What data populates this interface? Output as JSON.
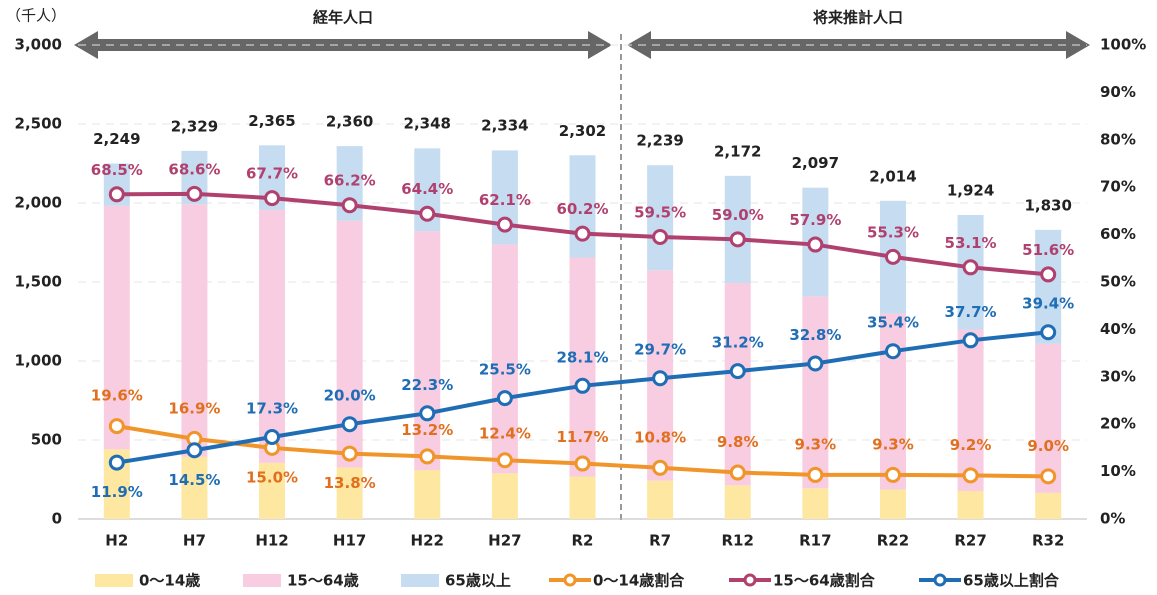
{
  "chart_data": {
    "type": "bar-line",
    "y_label": "（千人）",
    "annotations": [
      "経年人口",
      "将来推計人口"
    ],
    "categories": [
      "H2",
      "H7",
      "H12",
      "H17",
      "H22",
      "H27",
      "R2",
      "R7",
      "R12",
      "R17",
      "R22",
      "R27",
      "R32"
    ],
    "series": [
      {
        "name": "0～14歳",
        "type": "bar",
        "color": "#fde7a1",
        "values": [
          441,
          394,
          355,
          326,
          310,
          289,
          269,
          242,
          213,
          195,
          187,
          177,
          165
        ]
      },
      {
        "name": "15～64歳",
        "type": "bar",
        "color": "#f9cde1",
        "values": [
          1541,
          1598,
          1601,
          1562,
          1512,
          1449,
          1386,
          1332,
          1281,
          1214,
          1114,
          1022,
          944
        ]
      },
      {
        "name": "65歳以上",
        "type": "bar",
        "color": "#c6dcf0",
        "values": [
          268,
          338,
          409,
          472,
          524,
          595,
          647,
          665,
          678,
          688,
          713,
          725,
          721
        ]
      },
      {
        "name": "0～14歳割合",
        "type": "line",
        "axis": "y2",
        "color": "#f0952a",
        "label_color": "#e0701f",
        "values": [
          19.6,
          16.9,
          15.0,
          13.8,
          13.2,
          12.4,
          11.7,
          10.8,
          9.8,
          9.3,
          9.3,
          9.2,
          9.0
        ],
        "value_labels": [
          "19.6%",
          "16.9%",
          "15.0%",
          "13.8%",
          "13.2%",
          "12.4%",
          "11.7%",
          "10.8%",
          "9.8%",
          "9.3%",
          "9.3%",
          "9.2%",
          "9.0%"
        ]
      },
      {
        "name": "15～64歳割合",
        "type": "line",
        "axis": "y2",
        "color": "#b0416f",
        "label_color": "#b0416f",
        "values": [
          68.5,
          68.6,
          67.7,
          66.2,
          64.4,
          62.1,
          60.2,
          59.5,
          59.0,
          57.9,
          55.3,
          53.1,
          51.6
        ],
        "value_labels": [
          "68.5%",
          "68.6%",
          "67.7%",
          "66.2%",
          "64.4%",
          "62.1%",
          "60.2%",
          "59.5%",
          "59.0%",
          "57.9%",
          "55.3%",
          "53.1%",
          "51.6%"
        ]
      },
      {
        "name": "65歳以上割合",
        "type": "line",
        "axis": "y2",
        "color": "#1f6db5",
        "label_color": "#1f6db5",
        "values": [
          11.9,
          14.5,
          17.3,
          20.0,
          22.3,
          25.5,
          28.1,
          29.7,
          31.2,
          32.8,
          35.4,
          37.7,
          39.4
        ],
        "value_labels": [
          "11.9%",
          "14.5%",
          "17.3%",
          "20.0%",
          "22.3%",
          "25.5%",
          "28.1%",
          "29.7%",
          "31.2%",
          "32.8%",
          "35.4%",
          "37.7%",
          "39.4%"
        ]
      }
    ],
    "totals": [
      2249,
      2329,
      2365,
      2360,
      2348,
      2334,
      2302,
      2239,
      2172,
      2097,
      2014,
      1924,
      1830
    ],
    "total_labels": [
      "2,249",
      "2,329",
      "2,365",
      "2,360",
      "2,348",
      "2,334",
      "2,302",
      "2,239",
      "2,172",
      "2,097",
      "2,014",
      "1,924",
      "1,830"
    ],
    "ylim": [
      0,
      3000
    ],
    "yticks": [
      0,
      500,
      {
        "value": 1000,
        "label": "1,000"
      },
      {
        "value": 1500,
        "label": "1,500"
      },
      {
        "value": 2000,
        "label": "2,000"
      },
      {
        "value": 2500,
        "label": "2,500"
      },
      {
        "value": 3000,
        "label": "3,000"
      }
    ],
    "y2lim": [
      0,
      100
    ],
    "y2ticks": [
      {
        "value": 0,
        "label": "0%"
      },
      {
        "value": 10,
        "label": "10%"
      },
      {
        "value": 20,
        "label": "20%"
      },
      {
        "value": 30,
        "label": "30%"
      },
      {
        "value": 40,
        "label": "40%"
      },
      {
        "value": 50,
        "label": "50%"
      },
      {
        "value": 60,
        "label": "60%"
      },
      {
        "value": 70,
        "label": "70%"
      },
      {
        "value": 80,
        "label": "80%"
      },
      {
        "value": 90,
        "label": "90%"
      },
      {
        "value": 100,
        "label": "100%"
      }
    ],
    "grid": true,
    "legend": "bottom"
  }
}
